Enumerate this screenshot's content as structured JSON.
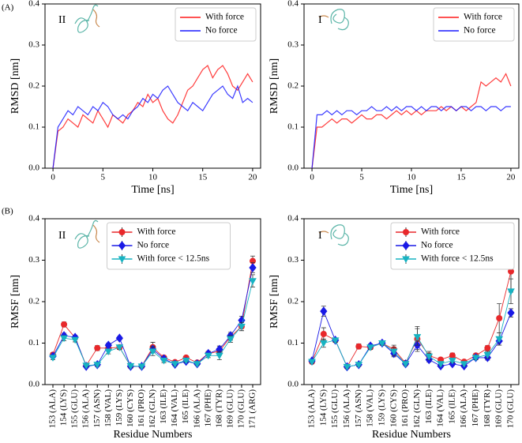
{
  "chart_data": [
    {
      "type": "line",
      "panel_label": "(A)",
      "annotation": "II",
      "x_label": "Time [ns]",
      "y_label": "RMSD [nm]",
      "x": [
        0,
        0.5,
        1,
        1.5,
        2,
        2.5,
        3,
        3.5,
        4,
        4.5,
        5,
        5.5,
        6,
        6.5,
        7,
        7.5,
        8,
        8.5,
        9,
        9.5,
        10,
        10.5,
        11,
        11.5,
        12,
        12.5,
        13,
        13.5,
        14,
        14.5,
        15,
        15.5,
        16,
        16.5,
        17,
        17.5,
        18,
        18.5,
        19,
        19.5,
        20
      ],
      "series": [
        {
          "name": "With force",
          "color": "#ff1a1a",
          "values": [
            0,
            0.09,
            0.1,
            0.12,
            0.11,
            0.1,
            0.13,
            0.12,
            0.11,
            0.14,
            0.12,
            0.1,
            0.13,
            0.12,
            0.11,
            0.13,
            0.14,
            0.16,
            0.15,
            0.18,
            0.16,
            0.17,
            0.14,
            0.12,
            0.11,
            0.13,
            0.16,
            0.19,
            0.2,
            0.22,
            0.24,
            0.25,
            0.22,
            0.24,
            0.25,
            0.23,
            0.2,
            0.19,
            0.21,
            0.23,
            0.21
          ]
        },
        {
          "name": "No force",
          "color": "#1a1aff",
          "values": [
            0,
            0.1,
            0.12,
            0.14,
            0.13,
            0.15,
            0.14,
            0.13,
            0.15,
            0.14,
            0.16,
            0.15,
            0.13,
            0.12,
            0.13,
            0.12,
            0.14,
            0.15,
            0.17,
            0.16,
            0.18,
            0.17,
            0.19,
            0.2,
            0.18,
            0.16,
            0.15,
            0.14,
            0.16,
            0.15,
            0.14,
            0.16,
            0.18,
            0.19,
            0.2,
            0.18,
            0.17,
            0.2,
            0.16,
            0.17,
            0.16
          ]
        }
      ],
      "xlim": [
        -0.8,
        20.8
      ],
      "xticks": [
        0,
        5,
        10,
        15,
        20
      ],
      "ylim": [
        0,
        0.4
      ],
      "yticks": [
        {
          "value": 0,
          "label": "0.0"
        },
        0.1,
        0.2,
        0.3,
        0.4
      ],
      "legend": "upper right"
    },
    {
      "type": "line",
      "annotation": "I",
      "x_label": "Time [ns]",
      "y_label": "RMSD [nm]",
      "x": [
        0,
        0.5,
        1,
        1.5,
        2,
        2.5,
        3,
        3.5,
        4,
        4.5,
        5,
        5.5,
        6,
        6.5,
        7,
        7.5,
        8,
        8.5,
        9,
        9.5,
        10,
        10.5,
        11,
        11.5,
        12,
        12.5,
        13,
        13.5,
        14,
        14.5,
        15,
        15.5,
        16,
        16.5,
        17,
        17.5,
        18,
        18.5,
        19,
        19.5,
        20
      ],
      "series": [
        {
          "name": "With force",
          "color": "#ff1a1a",
          "values": [
            0,
            0.1,
            0.1,
            0.11,
            0.12,
            0.11,
            0.12,
            0.12,
            0.11,
            0.12,
            0.13,
            0.12,
            0.12,
            0.13,
            0.13,
            0.12,
            0.13,
            0.14,
            0.13,
            0.14,
            0.13,
            0.14,
            0.13,
            0.14,
            0.14,
            0.14,
            0.15,
            0.14,
            0.15,
            0.14,
            0.15,
            0.14,
            0.15,
            0.16,
            0.21,
            0.2,
            0.21,
            0.22,
            0.21,
            0.23,
            0.2
          ]
        },
        {
          "name": "No force",
          "color": "#1a1aff",
          "values": [
            0,
            0.13,
            0.13,
            0.14,
            0.13,
            0.14,
            0.13,
            0.14,
            0.14,
            0.13,
            0.14,
            0.14,
            0.15,
            0.14,
            0.14,
            0.15,
            0.14,
            0.15,
            0.14,
            0.15,
            0.15,
            0.14,
            0.15,
            0.14,
            0.15,
            0.15,
            0.14,
            0.15,
            0.15,
            0.14,
            0.15,
            0.15,
            0.14,
            0.15,
            0.15,
            0.14,
            0.15,
            0.15,
            0.14,
            0.15,
            0.15
          ]
        }
      ],
      "xlim": [
        -0.8,
        20.8
      ],
      "xticks": [
        0,
        5,
        10,
        15,
        20
      ],
      "ylim": [
        0,
        0.4
      ],
      "yticks": [
        {
          "value": 0,
          "label": "0.0"
        },
        0.1,
        0.2,
        0.3,
        0.4
      ],
      "legend": "upper right"
    },
    {
      "type": "errorbar",
      "panel_label": "(B)",
      "annotation": "II",
      "x_label": "Residue Numbers",
      "y_label": "RMSF [nm]",
      "categories": [
        "153 (ALA)",
        "154 (LYS)",
        "155 (GLU)",
        "156 (ALA)",
        "157 (ASN)",
        "158 (VAL)",
        "159 (LYS)",
        "160 (CYS)",
        "161 (PRO)",
        "162 (GLN)",
        "163 (ILE)",
        "164 (VAL)",
        "165 (ILE)",
        "166 (ALA)",
        "167 (PHE)",
        "168 (TYR)",
        "169 (GLU)",
        "170 (GLU)",
        "171 (ARG)"
      ],
      "series": [
        {
          "name": "With force",
          "color": "#e8282b",
          "marker": "circle",
          "values": [
            0.072,
            0.145,
            0.113,
            0.046,
            0.088,
            0.088,
            0.09,
            0.044,
            0.044,
            0.09,
            0.065,
            0.054,
            0.065,
            0.053,
            0.075,
            0.08,
            0.115,
            0.14,
            0.298
          ],
          "errors": [
            0.005,
            0.006,
            0.005,
            0.003,
            0.006,
            0.005,
            0.005,
            0.003,
            0.003,
            0.012,
            0.005,
            0.004,
            0.004,
            0.003,
            0.005,
            0.008,
            0.008,
            0.01,
            0.012
          ]
        },
        {
          "name": "No force",
          "color": "#1a1ae6",
          "marker": "diamond",
          "values": [
            0.068,
            0.118,
            0.114,
            0.044,
            0.048,
            0.095,
            0.112,
            0.044,
            0.044,
            0.085,
            0.062,
            0.049,
            0.056,
            0.05,
            0.075,
            0.085,
            0.118,
            0.155,
            0.282
          ],
          "errors": [
            0.004,
            0.006,
            0.005,
            0.003,
            0.004,
            0.005,
            0.004,
            0.003,
            0.003,
            0.008,
            0.005,
            0.004,
            0.004,
            0.003,
            0.005,
            0.008,
            0.008,
            0.01,
            0.012
          ]
        },
        {
          "name": "With force < 12.5ns",
          "color": "#17b3c2",
          "marker": "triangle",
          "values": [
            0.065,
            0.112,
            0.108,
            0.046,
            0.048,
            0.08,
            0.09,
            0.045,
            0.044,
            0.08,
            0.058,
            0.05,
            0.058,
            0.05,
            0.07,
            0.07,
            0.11,
            0.14,
            0.25
          ],
          "errors": [
            0.005,
            0.006,
            0.005,
            0.003,
            0.004,
            0.006,
            0.005,
            0.003,
            0.003,
            0.01,
            0.005,
            0.004,
            0.004,
            0.003,
            0.005,
            0.01,
            0.008,
            0.01,
            0.015
          ]
        }
      ],
      "ylim": [
        0,
        0.4
      ],
      "yticks": [
        {
          "value": 0,
          "label": "0.0"
        },
        0.1,
        0.2,
        0.3,
        0.4
      ],
      "legend": "upper center"
    },
    {
      "type": "errorbar",
      "annotation": "I",
      "x_label": "Residue Numbers",
      "y_label": "RMSF [nm]",
      "categories": [
        "153 (ALA)",
        "154 (LYS)",
        "155 (GLU)",
        "156 (ALA)",
        "157 (ASN)",
        "158 (VAL)",
        "159 (LYS)",
        "160 (CYS)",
        "161 (PRO)",
        "162 (GLN)",
        "163 (ILE)",
        "164 (VAL)",
        "165 (ILE)",
        "166 (ALA)",
        "167 (PHE)",
        "168 (TYR)",
        "169 (GLU)",
        "170 (GLU)"
      ],
      "series": [
        {
          "name": "With force",
          "color": "#e8282b",
          "marker": "circle",
          "values": [
            0.055,
            0.122,
            0.107,
            0.043,
            0.092,
            0.09,
            0.1,
            0.085,
            0.052,
            0.11,
            0.07,
            0.06,
            0.07,
            0.055,
            0.07,
            0.088,
            0.16,
            0.273
          ],
          "errors": [
            0.004,
            0.015,
            0.005,
            0.003,
            0.006,
            0.005,
            0.005,
            0.01,
            0.004,
            0.03,
            0.01,
            0.005,
            0.006,
            0.004,
            0.005,
            0.006,
            0.035,
            0.05
          ]
        },
        {
          "name": "No force",
          "color": "#1a1ae6",
          "marker": "diamond",
          "values": [
            0.057,
            0.177,
            0.107,
            0.043,
            0.048,
            0.093,
            0.1,
            0.075,
            0.05,
            0.095,
            0.06,
            0.045,
            0.05,
            0.045,
            0.065,
            0.065,
            0.105,
            0.173
          ],
          "errors": [
            0.004,
            0.012,
            0.005,
            0.003,
            0.004,
            0.005,
            0.004,
            0.008,
            0.004,
            0.01,
            0.006,
            0.004,
            0.004,
            0.004,
            0.005,
            0.006,
            0.01,
            0.01
          ]
        },
        {
          "name": "With force < 12.5ns",
          "color": "#17b3c2",
          "marker": "triangle",
          "values": [
            0.055,
            0.1,
            0.107,
            0.043,
            0.048,
            0.09,
            0.1,
            0.08,
            0.05,
            0.115,
            0.068,
            0.05,
            0.058,
            0.05,
            0.065,
            0.072,
            0.11,
            0.225
          ],
          "errors": [
            0.004,
            0.01,
            0.005,
            0.003,
            0.004,
            0.005,
            0.005,
            0.01,
            0.004,
            0.02,
            0.008,
            0.004,
            0.005,
            0.004,
            0.005,
            0.008,
            0.015,
            0.03
          ]
        }
      ],
      "ylim": [
        0,
        0.4
      ],
      "yticks": [
        {
          "value": 0,
          "label": "0.0"
        },
        0.1,
        0.2,
        0.3,
        0.4
      ],
      "legend": "upper right"
    }
  ]
}
